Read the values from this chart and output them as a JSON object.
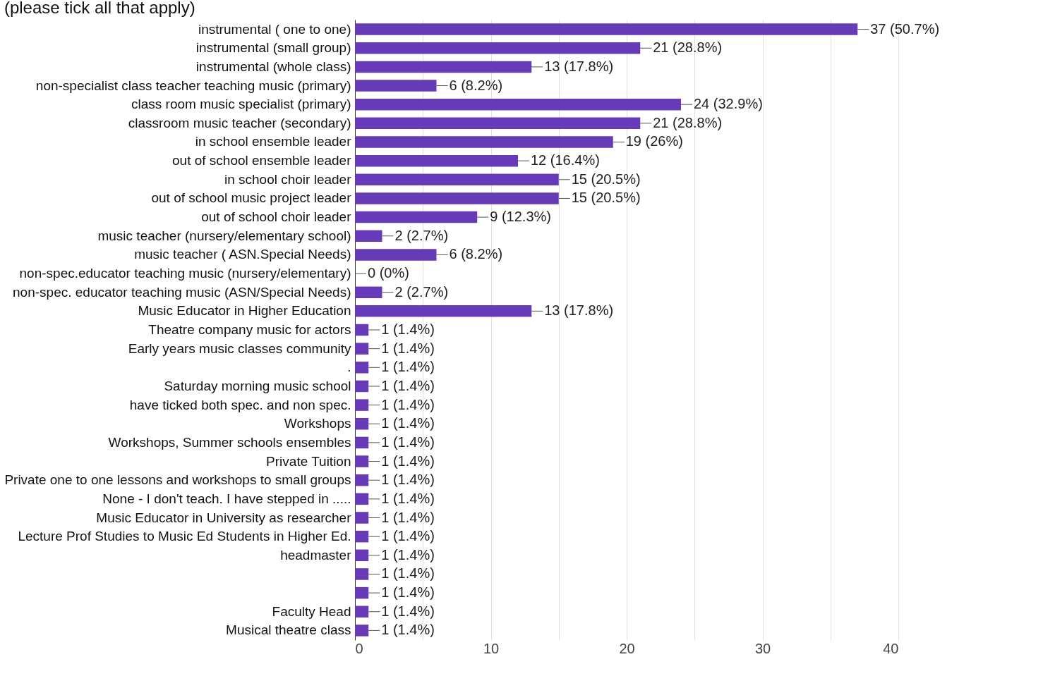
{
  "chart_data": {
    "type": "bar",
    "orientation": "horizontal",
    "title": "(please tick all that apply)",
    "categories": [
      "instrumental ( one to one)",
      "instrumental (small group)",
      "instrumental (whole class)",
      "non-specialist class teacher teaching music (primary)",
      "class room music specialist (primary)",
      "classroom music teacher (secondary)",
      "in school ensemble leader",
      "out of school ensemble leader",
      "in school choir leader",
      "out of school music project leader",
      "out of school choir leader",
      "music teacher (nursery/elementary school)",
      "music teacher ( ASN.Special Needs)",
      "non-spec.educator teaching music (nursery/elementary)",
      "non-spec. educator teaching music (ASN/Special Needs)",
      "Music Educator in Higher Education",
      "Theatre company music for actors",
      "Early years music classes community",
      ".",
      "Saturday morning music school",
      "have ticked both spec. and non spec.",
      "Workshops",
      "Workshops, Summer schools ensembles",
      "Private Tuition",
      "Private one to one lessons and workshops to small groups",
      "None - I don't teach. I have stepped in .....",
      "Music Educator in University as researcher",
      "Lecture Prof Studies to Music Ed Students in Higher Ed.",
      "headmaster",
      null,
      null,
      "Faculty Head",
      "Musical theatre class"
    ],
    "values": [
      37,
      21,
      13,
      6,
      24,
      21,
      19,
      12,
      15,
      15,
      9,
      2,
      6,
      0,
      2,
      13,
      1,
      1,
      1,
      1,
      1,
      1,
      1,
      1,
      1,
      1,
      1,
      1,
      1,
      1,
      1,
      1,
      1
    ],
    "value_labels": [
      "37 (50.7%)",
      "21 (28.8%)",
      "13 (17.8%)",
      "6 (8.2%)",
      "24 (32.9%)",
      "21 (28.8%)",
      "19 (26%)",
      "12 (16.4%)",
      "15 (20.5%)",
      "15 (20.5%)",
      "9 (12.3%)",
      "2 (2.7%)",
      "6 (8.2%)",
      "0 (0%)",
      "2 (2.7%)",
      "13 (17.8%)",
      "1 (1.4%)",
      "1 (1.4%)",
      "1 (1.4%)",
      "1 (1.4%)",
      "1 (1.4%)",
      "1 (1.4%)",
      "1 (1.4%)",
      "1 (1.4%)",
      "1 (1.4%)",
      "1 (1.4%)",
      "1 (1.4%)",
      "1 (1.4%)",
      "1 (1.4%)",
      "1 (1.4%)",
      "1 (1.4%)",
      "1 (1.4%)",
      "1 (1.4%)"
    ],
    "color": "#673ab7",
    "xlim": [
      0,
      40
    ],
    "xticks": [
      0,
      {
        "value": 5,
        "label": null
      },
      10,
      {
        "value": 15,
        "label": null
      },
      20,
      {
        "value": 25,
        "label": null
      },
      30,
      {
        "value": 35,
        "label": null
      },
      40
    ],
    "grid": "x"
  }
}
